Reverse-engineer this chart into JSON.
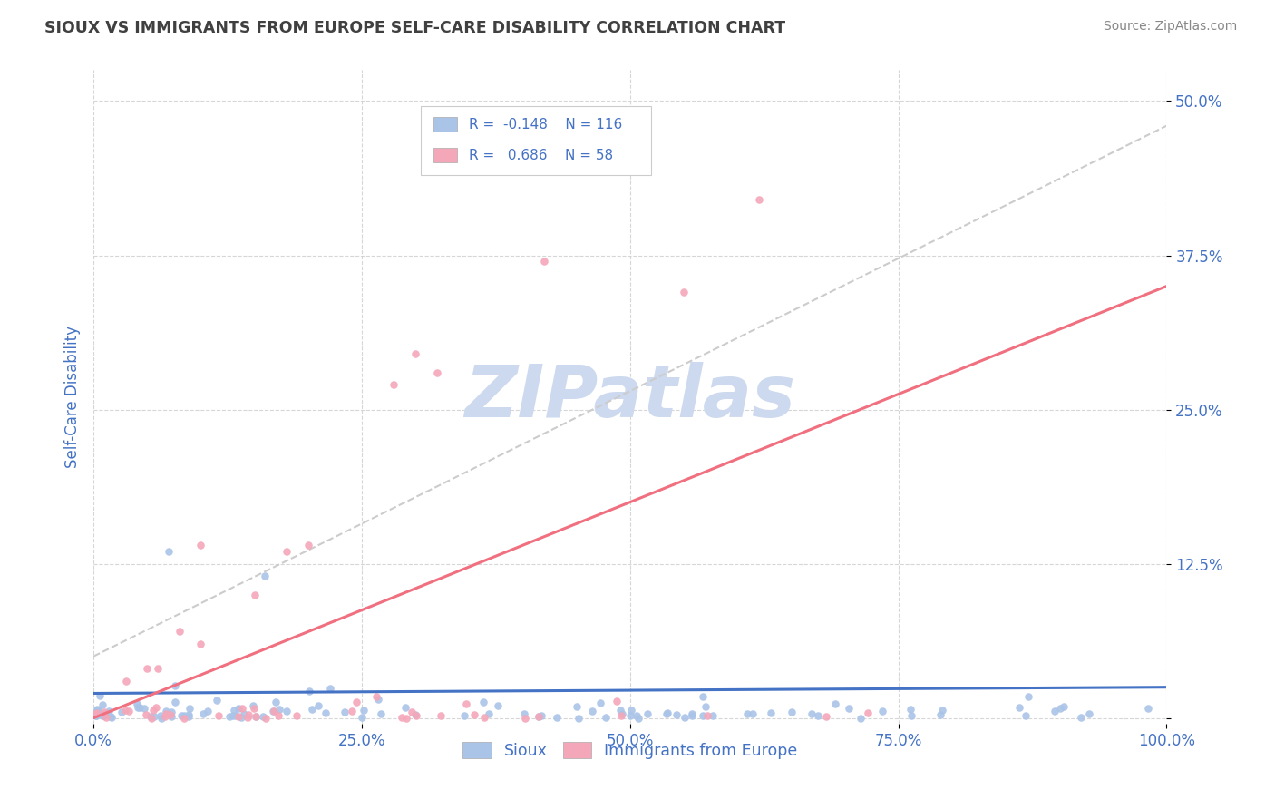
{
  "title": "SIOUX VS IMMIGRANTS FROM EUROPE SELF-CARE DISABILITY CORRELATION CHART",
  "source_text": "Source: ZipAtlas.com",
  "ylabel": "Self-Care Disability",
  "xlim": [
    0.0,
    1.0
  ],
  "ylim": [
    -0.005,
    0.525
  ],
  "xticks": [
    0.0,
    0.25,
    0.5,
    0.75,
    1.0
  ],
  "xticklabels": [
    "0.0%",
    "25.0%",
    "50.0%",
    "75.0%",
    "100.0%"
  ],
  "yticks": [
    0.0,
    0.125,
    0.25,
    0.375,
    0.5
  ],
  "yticklabels": [
    "",
    "12.5%",
    "25.0%",
    "37.5%",
    "50.0%"
  ],
  "sioux_color": "#aac4e8",
  "europe_color": "#f4a7b9",
  "sioux_line_color": "#4472c4",
  "europe_line_color": "#f07080",
  "dashed_line_color": "#cccccc",
  "axis_tick_color": "#4472c4",
  "title_color": "#404040",
  "background_color": "#ffffff",
  "grid_color": "#cccccc",
  "watermark_color": "#cdd9ee",
  "legend_box_color": "#ffffff",
  "legend_border_color": "#cccccc",
  "source_color": "#888888",
  "sioux_R": -0.148,
  "sioux_N": 116,
  "europe_R": 0.686,
  "europe_N": 58,
  "europe_line_x0": 0.0,
  "europe_line_y0": 0.0,
  "europe_line_x1": 1.0,
  "europe_line_y1": 0.35,
  "sioux_line_x0": 0.0,
  "sioux_line_y0": 0.02,
  "sioux_line_x1": 1.0,
  "sioux_line_y1": 0.025,
  "dashed_line_x0": 0.0,
  "dashed_line_y0": 0.05,
  "dashed_line_x1": 1.0,
  "dashed_line_y1": 0.48
}
